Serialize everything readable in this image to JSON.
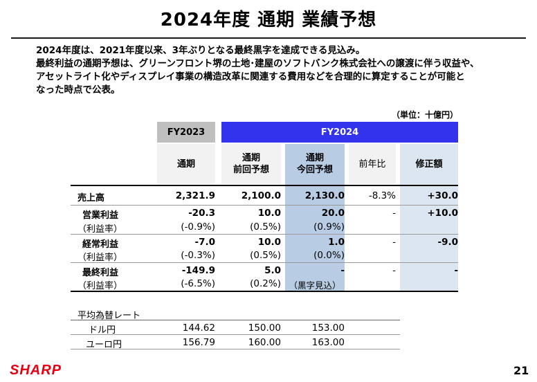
{
  "title": "2024年度 通期 業績予想",
  "intro": [
    "2024年度は、2021年度以来、3年ぶりとなる最終黒字を達成できる見込み。",
    "最終利益の通期予想は、グリーンフロント堺の土地･建屋のソフトバンク株式会社への譲渡に伴う収益や、",
    "アセットライト化やディスプレイ事業の構造改革に関連する費用などを合理的に算定することが可能と",
    "なった時点で公表。"
  ],
  "unit": "（単位：十億円）",
  "headers": {
    "fy2023": "FY2023",
    "fy2024": "FY2024",
    "cols": [
      {
        "line1": "通期",
        "line2": ""
      },
      {
        "line1": "通期",
        "line2": "前回予想"
      },
      {
        "line1": "通期",
        "line2": "今回予想"
      },
      {
        "line1": "前年比",
        "line2": ""
      },
      {
        "line1": "修正額",
        "line2": ""
      }
    ]
  },
  "rows": [
    {
      "label": "売上高",
      "values": [
        "2,321.9",
        "2,100.0",
        "2,130.0",
        "-8.3%",
        "+30.0"
      ]
    },
    {
      "label": "営業利益",
      "values": [
        "-20.3",
        "10.0",
        "20.0",
        "-",
        "+10.0"
      ]
    },
    {
      "label": "（利益率）",
      "values": [
        "(-0.9%)",
        "(0.5%)",
        "(0.9%)",
        "",
        ""
      ]
    },
    {
      "label": "経常利益",
      "values": [
        "-7.0",
        "10.0",
        "1.0",
        "-",
        "-9.0"
      ]
    },
    {
      "label": "（利益率）",
      "values": [
        "(-0.3%)",
        "(0.5%)",
        "(0.0%)",
        "",
        ""
      ]
    },
    {
      "label": "最終利益",
      "values": [
        "-149.9",
        "5.0",
        "-",
        "-",
        "-"
      ]
    },
    {
      "label": "（利益率）",
      "values": [
        "(-6.5%)",
        "(0.2%)",
        "（黒字見込）",
        "",
        ""
      ]
    }
  ],
  "fx": {
    "title": "平均為替レート",
    "rows": [
      {
        "label": "ドル円",
        "values": [
          "144.62",
          "150.00",
          "153.00"
        ]
      },
      {
        "label": "ユーロ円",
        "values": [
          "156.79",
          "160.00",
          "163.00"
        ]
      }
    ]
  },
  "footer": {
    "logo": "SHARP",
    "page": "21"
  },
  "colors": {
    "fy2024_header": "#3333ee",
    "fy2023_header": "#bfbfbf",
    "highlight_col": "#b8cce4",
    "light_col": "#dce6f1",
    "logo": "#e60012"
  }
}
